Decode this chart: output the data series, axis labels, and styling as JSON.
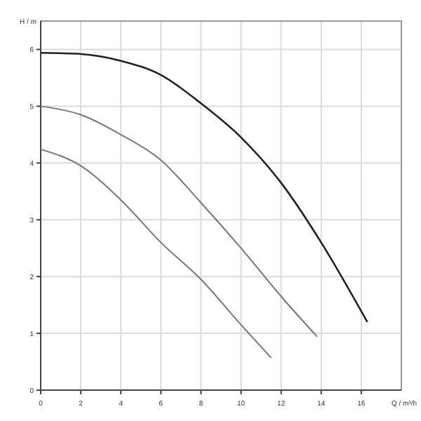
{
  "chart_data": {
    "type": "line",
    "xlabel": "Q / m³/h",
    "ylabel": "H / m",
    "xlim": [
      0,
      18
    ],
    "xticks": [
      0,
      2,
      4,
      6,
      8,
      10,
      12,
      14,
      16
    ],
    "ylim": [
      0,
      6.5
    ],
    "yticks": [
      0,
      1,
      2,
      3,
      4,
      5,
      6
    ],
    "grid": true,
    "marker": "none",
    "line_style": "solid",
    "series": [
      {
        "color": "#222222",
        "x": [
          0,
          2,
          4,
          6,
          8,
          10,
          12,
          14,
          16.3
        ],
        "values": [
          5.94,
          5.92,
          5.8,
          5.55,
          5.05,
          4.45,
          3.65,
          2.6,
          1.2
        ]
      },
      {
        "color": "#777777",
        "x": [
          0,
          2,
          4,
          6,
          8,
          10,
          12,
          13.8
        ],
        "values": [
          5.0,
          4.85,
          4.5,
          4.05,
          3.3,
          2.5,
          1.65,
          0.94
        ]
      },
      {
        "color": "#777777",
        "x": [
          0,
          2,
          4,
          6,
          8,
          10,
          11.5
        ],
        "values": [
          4.24,
          3.95,
          3.35,
          2.6,
          1.95,
          1.15,
          0.57
        ]
      }
    ]
  }
}
